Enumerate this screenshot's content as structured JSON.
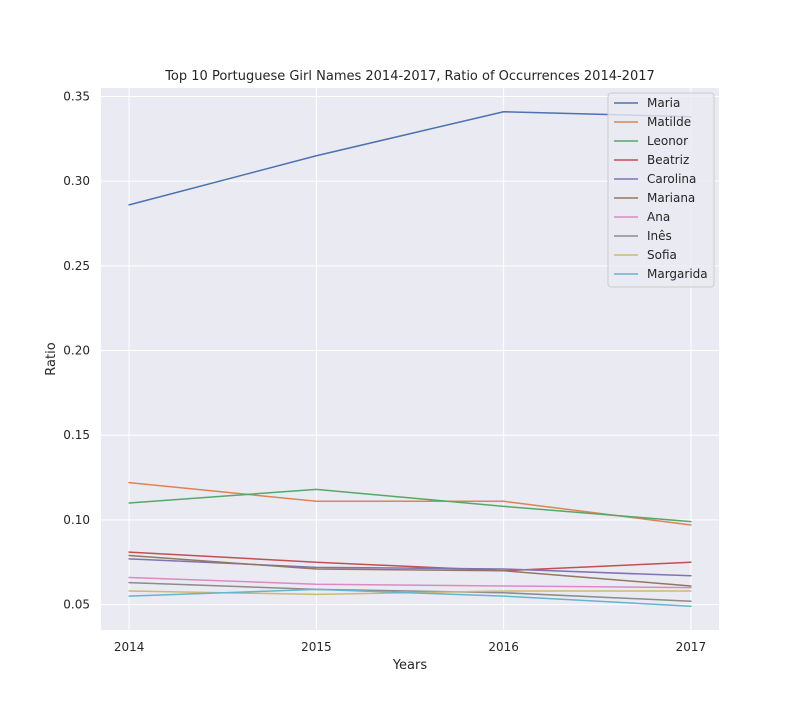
{
  "chart_data": {
    "type": "line",
    "title": "Top 10 Portuguese Girl Names 2014-2017, Ratio of Occurrences 2014-2017",
    "xlabel": "Years",
    "ylabel": "Ratio",
    "x": [
      2014,
      2015,
      2016,
      2017
    ],
    "x_tick_labels": [
      "2014",
      "2015",
      "2016",
      "2017"
    ],
    "y_ticks": [
      0.05,
      0.1,
      0.15,
      0.2,
      0.25,
      0.3,
      0.35
    ],
    "y_tick_labels": [
      "0.05",
      "0.10",
      "0.15",
      "0.20",
      "0.25",
      "0.30",
      "0.35"
    ],
    "xlim": [
      2013.85,
      2017.15
    ],
    "ylim": [
      0.035,
      0.355
    ],
    "grid": true,
    "legend_position": "top-right",
    "background": "#eaeaf2",
    "series": [
      {
        "name": "Maria",
        "color": "#4c72b0",
        "values": [
          0.286,
          0.315,
          0.341,
          0.338
        ]
      },
      {
        "name": "Matilde",
        "color": "#dd8452",
        "values": [
          0.122,
          0.111,
          0.111,
          0.097
        ]
      },
      {
        "name": "Leonor",
        "color": "#55a868",
        "values": [
          0.11,
          0.118,
          0.108,
          0.099
        ]
      },
      {
        "name": "Beatriz",
        "color": "#c44e52",
        "values": [
          0.081,
          0.075,
          0.07,
          0.075
        ]
      },
      {
        "name": "Carolina",
        "color": "#8172b3",
        "values": [
          0.077,
          0.072,
          0.071,
          0.067
        ]
      },
      {
        "name": "Mariana",
        "color": "#937860",
        "values": [
          0.079,
          0.071,
          0.07,
          0.061
        ]
      },
      {
        "name": "Ana",
        "color": "#da8bc3",
        "values": [
          0.066,
          0.062,
          0.061,
          0.06
        ]
      },
      {
        "name": "Inês",
        "color": "#8c8c8c",
        "values": [
          0.063,
          0.059,
          0.057,
          0.052
        ]
      },
      {
        "name": "Sofia",
        "color": "#ccb974",
        "values": [
          0.058,
          0.056,
          0.058,
          0.058
        ]
      },
      {
        "name": "Margarida",
        "color": "#64b5cd",
        "values": [
          0.055,
          0.059,
          0.055,
          0.049
        ]
      }
    ]
  }
}
